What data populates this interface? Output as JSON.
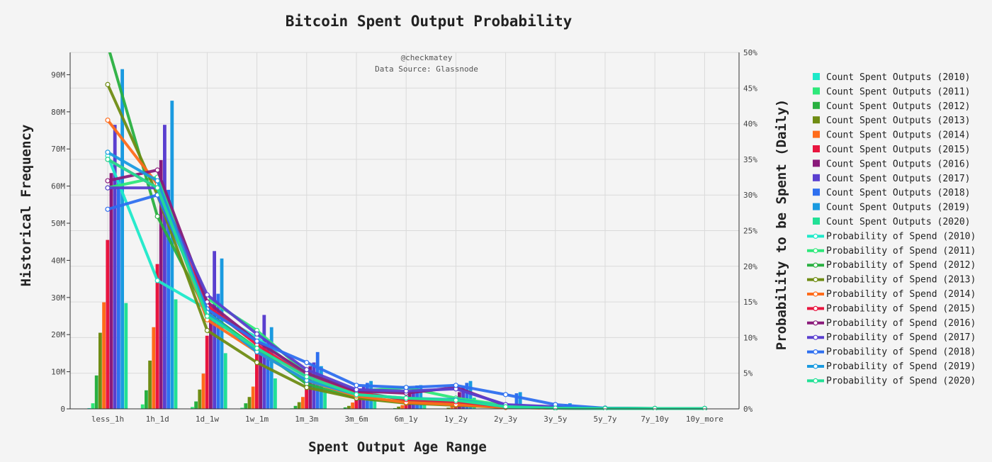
{
  "chart_data": {
    "type": "bar+line",
    "title": "Bitcoin Spent Output Probability",
    "xlabel": "Spent Output Age Range",
    "ylabel": "Historical Frequency",
    "y2label": "Probability to be Spent (Daily)",
    "annotations": [
      "@checkmatey",
      "Data Source: Glassnode"
    ],
    "categories": [
      "less_1h",
      "1h_1d",
      "1d_1w",
      "1w_1m",
      "1m_3m",
      "3m_6m",
      "6m_1y",
      "1y_2y",
      "2y_3y",
      "3y_5y",
      "5y_7y",
      "7y_10y",
      "10y_more"
    ],
    "ylim": [
      0,
      96000000
    ],
    "yticks": [
      0,
      10000000,
      20000000,
      30000000,
      40000000,
      50000000,
      60000000,
      70000000,
      80000000,
      90000000
    ],
    "ytick_labels": [
      "0",
      "10M",
      "20M",
      "30M",
      "40M",
      "50M",
      "60M",
      "70M",
      "80M",
      "90M"
    ],
    "y2lim": [
      0,
      50
    ],
    "y2ticks": [
      0,
      5,
      10,
      15,
      20,
      25,
      30,
      35,
      40,
      45,
      50
    ],
    "y2tick_labels": [
      "0%",
      "5%",
      "10%",
      "15%",
      "20%",
      "25%",
      "30%",
      "35%",
      "40%",
      "45%",
      "50%"
    ],
    "grid": true,
    "legend_position": "right",
    "bar_series": [
      {
        "name": "Count Spent Outputs (2010)",
        "color": "#1de9c9",
        "values": [
          200000,
          100000,
          50000,
          20000,
          10000,
          5000,
          0,
          0,
          0,
          0,
          0,
          0,
          0
        ]
      },
      {
        "name": "Count Spent Outputs (2011)",
        "color": "#2ee87a",
        "values": [
          1500000,
          1200000,
          500000,
          300000,
          150000,
          100000,
          50000,
          0,
          0,
          0,
          0,
          0,
          0
        ]
      },
      {
        "name": "Count Spent Outputs (2012)",
        "color": "#29b040",
        "values": [
          9000000,
          5000000,
          2000000,
          1500000,
          800000,
          400000,
          200000,
          100000,
          50000,
          0,
          0,
          0,
          0
        ]
      },
      {
        "name": "Count Spent Outputs (2013)",
        "color": "#6f8c13",
        "values": [
          20500000,
          13000000,
          5200000,
          3200000,
          1800000,
          800000,
          600000,
          300000,
          100000,
          0,
          0,
          0,
          0
        ]
      },
      {
        "name": "Count Spent Outputs (2014)",
        "color": "#ff6b1a",
        "values": [
          28700000,
          22000000,
          9500000,
          6000000,
          3200000,
          1700000,
          1000000,
          700000,
          300000,
          0,
          0,
          0,
          0
        ]
      },
      {
        "name": "Count Spent Outputs (2015)",
        "color": "#e8153f",
        "values": [
          45500000,
          39000000,
          19700000,
          16000000,
          7000000,
          4600000,
          2200000,
          1500000,
          600000,
          0,
          0,
          0,
          0
        ]
      },
      {
        "name": "Count Spent Outputs (2016)",
        "color": "#8a1a7a",
        "values": [
          63500000,
          67000000,
          26500000,
          15000000,
          11500000,
          5000000,
          4800000,
          4500000,
          900000,
          0,
          0,
          0,
          0
        ]
      },
      {
        "name": "Count Spent Outputs (2017)",
        "color": "#5a3fcf",
        "values": [
          76500000,
          76500000,
          42500000,
          25300000,
          12500000,
          6000000,
          5400000,
          6000000,
          1200000,
          0,
          0,
          0,
          0
        ]
      },
      {
        "name": "Count Spent Outputs (2018)",
        "color": "#2e6fef",
        "values": [
          62000000,
          59000000,
          31000000,
          18500000,
          15300000,
          7000000,
          6300000,
          7000000,
          4200000,
          1200000,
          0,
          0,
          0
        ]
      },
      {
        "name": "Count Spent Outputs (2019)",
        "color": "#1a9ae0",
        "values": [
          91500000,
          83000000,
          40500000,
          22000000,
          11500000,
          7500000,
          6400000,
          7500000,
          4500000,
          1500000,
          300000,
          0,
          0
        ]
      },
      {
        "name": "Count Spent Outputs (2020)",
        "color": "#22e096",
        "values": [
          28500000,
          29500000,
          15000000,
          8200000,
          5000000,
          3500000,
          3000000,
          3000000,
          1200000,
          400000,
          100000,
          0,
          0
        ]
      }
    ],
    "line_series": [
      {
        "name": "Probability of Spend (2010)",
        "color": "#1de9c9",
        "values": [
          35.5,
          18.0,
          14.0,
          10.0,
          4.5,
          2.5,
          1.2,
          0.8,
          0.3,
          0.1,
          0.1,
          0.05,
          0.05
        ]
      },
      {
        "name": "Probability of Spend (2011)",
        "color": "#2ee87a",
        "values": [
          31.0,
          32.5,
          15.5,
          11.0,
          5.0,
          2.5,
          3.0,
          1.5,
          0.5,
          0.2,
          0.1,
          0.05,
          0.05
        ]
      },
      {
        "name": "Probability of Spend (2012)",
        "color": "#29b040",
        "values": [
          51.0,
          27.0,
          13.5,
          8.5,
          3.5,
          1.5,
          1.0,
          0.6,
          0.3,
          0.1,
          0.1,
          0.05,
          0.05
        ]
      },
      {
        "name": "Probability of Spend (2013)",
        "color": "#6f8c13",
        "values": [
          45.5,
          30.0,
          11.0,
          6.5,
          3.0,
          1.5,
          0.8,
          0.5,
          0.2,
          0.1,
          0.05,
          0.05,
          0.05
        ]
      },
      {
        "name": "Probability of Spend (2014)",
        "color": "#ff6b1a",
        "values": [
          40.5,
          31.5,
          12.5,
          8.0,
          4.0,
          1.8,
          0.9,
          0.6,
          0.2,
          0.1,
          0.05,
          0.05,
          0.05
        ]
      },
      {
        "name": "Probability of Spend (2015)",
        "color": "#e8153f",
        "values": [
          35.0,
          31.0,
          14.5,
          9.0,
          4.5,
          2.3,
          1.3,
          1.0,
          0.3,
          0.1,
          0.05,
          0.05,
          0.05
        ]
      },
      {
        "name": "Probability of Spend (2016)",
        "color": "#8a1a7a",
        "values": [
          32.0,
          33.5,
          15.0,
          9.5,
          5.0,
          2.5,
          2.2,
          3.0,
          0.5,
          0.2,
          0.05,
          0.05,
          0.05
        ]
      },
      {
        "name": "Probability of Spend (2017)",
        "color": "#5a3fcf",
        "values": [
          31.0,
          31.0,
          16.0,
          10.5,
          5.5,
          2.7,
          2.5,
          2.8,
          0.6,
          0.3,
          0.05,
          0.05,
          0.05
        ]
      },
      {
        "name": "Probability of Spend (2018)",
        "color": "#2e6fef",
        "values": [
          28.0,
          30.0,
          14.0,
          9.5,
          6.5,
          3.3,
          3.0,
          3.3,
          2.0,
          0.6,
          0.1,
          0.05,
          0.05
        ]
      },
      {
        "name": "Probability of Spend (2019)",
        "color": "#1a9ae0",
        "values": [
          36.0,
          32.0,
          13.5,
          8.0,
          4.0,
          2.0,
          1.5,
          1.3,
          0.3,
          0.1,
          0.05,
          0.05,
          0.05
        ]
      },
      {
        "name": "Probability of Spend (2020)",
        "color": "#22e096",
        "values": [
          35.0,
          31.0,
          13.0,
          8.5,
          4.5,
          2.0,
          1.5,
          1.2,
          0.3,
          0.1,
          0.05,
          0.05,
          0.05
        ]
      }
    ]
  }
}
